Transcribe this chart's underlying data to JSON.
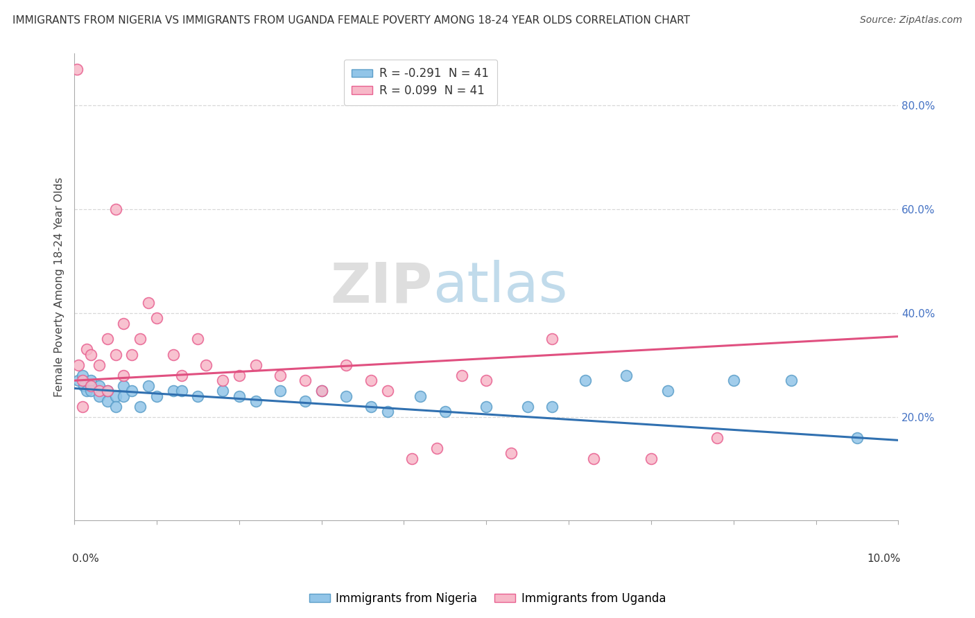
{
  "title": "IMMIGRANTS FROM NIGERIA VS IMMIGRANTS FROM UGANDA FEMALE POVERTY AMONG 18-24 YEAR OLDS CORRELATION CHART",
  "source": "Source: ZipAtlas.com",
  "ylabel": "Female Poverty Among 18-24 Year Olds",
  "xlabel_nigeria": "Immigrants from Nigeria",
  "xlabel_uganda": "Immigrants from Uganda",
  "xlim": [
    0.0,
    0.1
  ],
  "ylim": [
    0.0,
    0.9
  ],
  "ytick_vals": [
    0.2,
    0.4,
    0.6,
    0.8
  ],
  "ytick_labels": [
    "20.0%",
    "40.0%",
    "60.0%",
    "80.0%"
  ],
  "xtick_vals": [
    0.0,
    0.1
  ],
  "xtick_labels": [
    "0.0%",
    "10.0%"
  ],
  "legend_nigeria_R": "R = -0.291",
  "legend_nigeria_N": "N = 41",
  "legend_uganda_R": "R = 0.099",
  "legend_uganda_N": "N = 41",
  "color_nigeria": "#92c5e8",
  "color_uganda": "#f7b8c8",
  "edge_color_nigeria": "#5b9ec9",
  "edge_color_uganda": "#e86090",
  "line_color_nigeria": "#3070b0",
  "line_color_uganda": "#e05080",
  "watermark_zip": "ZIP",
  "watermark_atlas": "atlas",
  "background_color": "#ffffff",
  "grid_color": "#d8d8d8",
  "nigeria_scatter_x": [
    0.0005,
    0.001,
    0.0012,
    0.0015,
    0.002,
    0.002,
    0.003,
    0.003,
    0.004,
    0.004,
    0.005,
    0.005,
    0.006,
    0.006,
    0.007,
    0.008,
    0.009,
    0.01,
    0.012,
    0.013,
    0.015,
    0.018,
    0.02,
    0.022,
    0.025,
    0.028,
    0.03,
    0.033,
    0.036,
    0.038,
    0.042,
    0.045,
    0.05,
    0.055,
    0.058,
    0.062,
    0.067,
    0.072,
    0.08,
    0.087,
    0.095
  ],
  "nigeria_scatter_y": [
    0.27,
    0.28,
    0.26,
    0.25,
    0.27,
    0.25,
    0.24,
    0.26,
    0.23,
    0.25,
    0.24,
    0.22,
    0.26,
    0.24,
    0.25,
    0.22,
    0.26,
    0.24,
    0.25,
    0.25,
    0.24,
    0.25,
    0.24,
    0.23,
    0.25,
    0.23,
    0.25,
    0.24,
    0.22,
    0.21,
    0.24,
    0.21,
    0.22,
    0.22,
    0.22,
    0.27,
    0.28,
    0.25,
    0.27,
    0.27,
    0.16
  ],
  "uganda_scatter_x": [
    0.0003,
    0.0005,
    0.001,
    0.001,
    0.0015,
    0.002,
    0.002,
    0.003,
    0.003,
    0.004,
    0.004,
    0.005,
    0.005,
    0.006,
    0.006,
    0.007,
    0.008,
    0.009,
    0.01,
    0.012,
    0.013,
    0.015,
    0.016,
    0.018,
    0.02,
    0.022,
    0.025,
    0.028,
    0.03,
    0.033,
    0.036,
    0.038,
    0.041,
    0.044,
    0.047,
    0.05,
    0.053,
    0.058,
    0.063,
    0.07,
    0.078
  ],
  "uganda_scatter_y": [
    0.87,
    0.3,
    0.27,
    0.22,
    0.33,
    0.32,
    0.26,
    0.3,
    0.25,
    0.35,
    0.25,
    0.6,
    0.32,
    0.38,
    0.28,
    0.32,
    0.35,
    0.42,
    0.39,
    0.32,
    0.28,
    0.35,
    0.3,
    0.27,
    0.28,
    0.3,
    0.28,
    0.27,
    0.25,
    0.3,
    0.27,
    0.25,
    0.12,
    0.14,
    0.28,
    0.27,
    0.13,
    0.35,
    0.12,
    0.12,
    0.16
  ]
}
